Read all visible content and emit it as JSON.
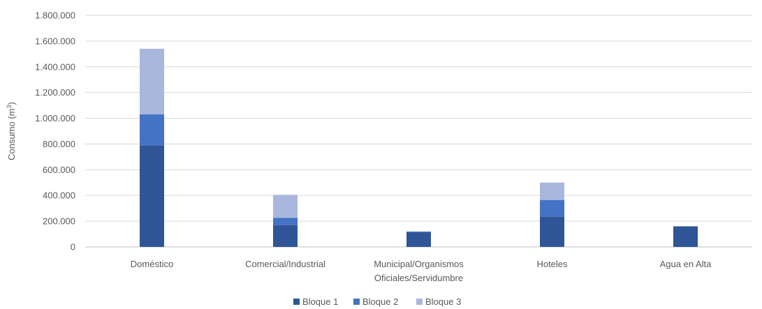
{
  "chart_data": {
    "type": "bar",
    "stacked": true,
    "categories": [
      [
        "Doméstico"
      ],
      [
        "Comercial/Industrial"
      ],
      [
        "Municipal/Organismos",
        "Oficiales/Servidumbre"
      ],
      [
        "Hoteles"
      ],
      [
        "Agua en Alta"
      ]
    ],
    "series": [
      {
        "name": "Bloque 1",
        "color": "#2f5597",
        "values": [
          790000,
          170000,
          115000,
          235000,
          160000
        ]
      },
      {
        "name": "Bloque 2",
        "color": "#4472c4",
        "values": [
          240000,
          55000,
          5000,
          130000,
          0
        ]
      },
      {
        "name": "Bloque 3",
        "color": "#a9b7dc",
        "values": [
          510000,
          180000,
          0,
          135000,
          0
        ]
      }
    ],
    "ylabel": "Consumo (m",
    "ylabel_sup": "3",
    "ylabel_close": ")",
    "ylim": [
      0,
      1800000
    ],
    "yticks": [
      0,
      200000,
      400000,
      600000,
      800000,
      1000000,
      1200000,
      1400000,
      1600000,
      1800000
    ],
    "ytick_labels": [
      "0",
      "200.000",
      "400.000",
      "600.000",
      "800.000",
      "1.000.000",
      "1.200.000",
      "1.400.000",
      "1.600.000",
      "1.800.000"
    ],
    "grid": true,
    "legend_position": "bottom"
  }
}
